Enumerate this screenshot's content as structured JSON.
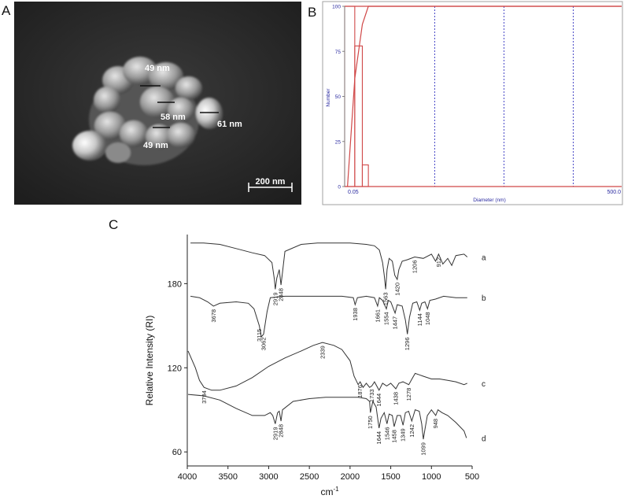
{
  "panels": {
    "a": "A",
    "b": "B",
    "c": "C"
  },
  "sem": {
    "labels": [
      "49 nm",
      "58 nm",
      "61 nm",
      "49 nm"
    ],
    "scale_bar": "200 nm"
  },
  "chart_data": [
    {
      "panel": "B",
      "type": "line",
      "title": "",
      "xlabel": "Diameter (nm)",
      "ylabel": "Number",
      "xlim": [
        0.05,
        500.0
      ],
      "ylim": [
        0,
        100
      ],
      "x_tick_labels": [
        "0.05",
        "500.0"
      ],
      "y_tick_labels": [
        "0",
        "25",
        "50",
        "75",
        "100"
      ],
      "bars": [
        {
          "x_from": 0.05,
          "x_to": 0.07,
          "value": 100
        },
        {
          "x_from": 0.07,
          "x_to": 0.09,
          "value": 78
        },
        {
          "x_from": 0.09,
          "x_to": 0.11,
          "value": 12
        }
      ],
      "cumulative": [
        {
          "x": 0.055,
          "y": 0
        },
        {
          "x": 0.07,
          "y": 60
        },
        {
          "x": 0.09,
          "y": 90
        },
        {
          "x": 0.11,
          "y": 100
        },
        {
          "x": 500.0,
          "y": 100
        }
      ],
      "grid": "vertical dashed"
    },
    {
      "panel": "C",
      "type": "line",
      "title": "",
      "xlabel": "cm",
      "xlabel_sup": "-1",
      "ylabel": "Relative Intensity (RI)",
      "xlim": [
        4000,
        500
      ],
      "x_ticks": [
        4000,
        3500,
        3000,
        2500,
        2000,
        1500,
        1000,
        500
      ],
      "ylim": [
        50,
        215
      ],
      "y_ticks": [
        60,
        120,
        180
      ],
      "series": [
        {
          "name": "a",
          "points": [
            [
              3960,
              209
            ],
            [
              3800,
              209
            ],
            [
              3600,
              208
            ],
            [
              3400,
              205
            ],
            [
              3200,
              202
            ],
            [
              3050,
              200
            ],
            [
              2960,
              195
            ],
            [
              2930,
              183
            ],
            [
              2919,
              176
            ],
            [
              2900,
              184
            ],
            [
              2870,
              190
            ],
            [
              2848,
              179
            ],
            [
              2830,
              188
            ],
            [
              2800,
              203
            ],
            [
              2600,
              208
            ],
            [
              2400,
              209
            ],
            [
              2200,
              209
            ],
            [
              2000,
              209
            ],
            [
              1800,
              208
            ],
            [
              1700,
              207
            ],
            [
              1640,
              204
            ],
            [
              1600,
              195
            ],
            [
              1580,
              186
            ],
            [
              1563,
              176
            ],
            [
              1545,
              190
            ],
            [
              1520,
              198
            ],
            [
              1480,
              196
            ],
            [
              1450,
              186
            ],
            [
              1420,
              183
            ],
            [
              1400,
              190
            ],
            [
              1360,
              196
            ],
            [
              1300,
              197
            ],
            [
              1206,
              199
            ],
            [
              1100,
              198
            ],
            [
              1000,
              201
            ],
            [
              950,
              196
            ],
            [
              912,
              201
            ],
            [
              860,
              194
            ],
            [
              800,
              198
            ],
            [
              750,
              193
            ],
            [
              700,
              200
            ],
            [
              600,
              201
            ],
            [
              560,
              199
            ]
          ],
          "labels": [
            {
              "wn": 2919,
              "text": "2919"
            },
            {
              "wn": 2848,
              "text": "2848"
            },
            {
              "wn": 1563,
              "text": "1563"
            },
            {
              "wn": 1420,
              "text": "1420"
            },
            {
              "wn": 1206,
              "text": "1206"
            },
            {
              "wn": 912,
              "text": "912"
            }
          ]
        },
        {
          "name": "b",
          "points": [
            [
              3960,
              171
            ],
            [
              3850,
              170
            ],
            [
              3750,
              167
            ],
            [
              3678,
              164
            ],
            [
              3600,
              166
            ],
            [
              3400,
              167
            ],
            [
              3250,
              166
            ],
            [
              3180,
              162
            ],
            [
              3115,
              150
            ],
            [
              3090,
              142
            ],
            [
              3062,
              144
            ],
            [
              3020,
              160
            ],
            [
              2980,
              170
            ],
            [
              2800,
              171
            ],
            [
              2400,
              171
            ],
            [
              2100,
              171
            ],
            [
              1960,
              170
            ],
            [
              1938,
              165
            ],
            [
              1910,
              170
            ],
            [
              1800,
              171
            ],
            [
              1700,
              170
            ],
            [
              1661,
              164
            ],
            [
              1640,
              170
            ],
            [
              1600,
              168
            ],
            [
              1554,
              162
            ],
            [
              1530,
              168
            ],
            [
              1500,
              167
            ],
            [
              1447,
              159
            ],
            [
              1420,
              165
            ],
            [
              1360,
              164
            ],
            [
              1320,
              154
            ],
            [
              1296,
              144
            ],
            [
              1270,
              156
            ],
            [
              1230,
              166
            ],
            [
              1180,
              167
            ],
            [
              1144,
              161
            ],
            [
              1120,
              166
            ],
            [
              1080,
              167
            ],
            [
              1048,
              162
            ],
            [
              1020,
              168
            ],
            [
              950,
              169
            ],
            [
              850,
              171
            ],
            [
              700,
              170
            ],
            [
              600,
              170
            ],
            [
              560,
              170
            ]
          ],
          "labels": [
            {
              "wn": 3678,
              "text": "3678"
            },
            {
              "wn": 3115,
              "text": "3115"
            },
            {
              "wn": 3062,
              "text": "3062"
            },
            {
              "wn": 1938,
              "text": "1938"
            },
            {
              "wn": 1661,
              "text": "1661"
            },
            {
              "wn": 1554,
              "text": "1554"
            },
            {
              "wn": 1447,
              "text": "1447"
            },
            {
              "wn": 1296,
              "text": "1296"
            },
            {
              "wn": 1144,
              "text": "1144"
            },
            {
              "wn": 1048,
              "text": "1048"
            }
          ]
        },
        {
          "name": "c",
          "points": [
            [
              3990,
              132
            ],
            [
              3900,
              120
            ],
            [
              3850,
              111
            ],
            [
              3794,
              106
            ],
            [
              3700,
              104
            ],
            [
              3600,
              104
            ],
            [
              3400,
              107
            ],
            [
              3200,
              113
            ],
            [
              3000,
              121
            ],
            [
              2800,
              127
            ],
            [
              2600,
              132
            ],
            [
              2450,
              136
            ],
            [
              2339,
              138
            ],
            [
              2200,
              136
            ],
            [
              2100,
              133
            ],
            [
              2000,
              125
            ],
            [
              1950,
              114
            ],
            [
              1900,
              108
            ],
            [
              1876,
              110
            ],
            [
              1840,
              106
            ],
            [
              1800,
              109
            ],
            [
              1760,
              106
            ],
            [
              1733,
              107
            ],
            [
              1700,
              110
            ],
            [
              1644,
              104
            ],
            [
              1600,
              109
            ],
            [
              1550,
              107
            ],
            [
              1500,
              109
            ],
            [
              1438,
              105
            ],
            [
              1400,
              109
            ],
            [
              1350,
              110
            ],
            [
              1278,
              108
            ],
            [
              1240,
              112
            ],
            [
              1200,
              116
            ],
            [
              1150,
              115
            ],
            [
              1100,
              114
            ],
            [
              1000,
              112
            ],
            [
              900,
              112
            ],
            [
              800,
              111
            ],
            [
              700,
              110
            ],
            [
              600,
              108
            ],
            [
              560,
              109
            ]
          ],
          "labels": [
            {
              "wn": 3794,
              "text": "3794"
            },
            {
              "wn": 2339,
              "text": "2339"
            },
            {
              "wn": 1876,
              "text": "1876"
            },
            {
              "wn": 1733,
              "text": "1733"
            },
            {
              "wn": 1644,
              "text": "1644"
            },
            {
              "wn": 1438,
              "text": "1438"
            },
            {
              "wn": 1278,
              "text": "1278"
            }
          ]
        },
        {
          "name": "d",
          "points": [
            [
              3990,
              101
            ],
            [
              3800,
              100
            ],
            [
              3600,
              97
            ],
            [
              3400,
              91
            ],
            [
              3200,
              86
            ],
            [
              3050,
              86
            ],
            [
              2980,
              88
            ],
            [
              2950,
              86
            ],
            [
              2919,
              80
            ],
            [
              2890,
              88
            ],
            [
              2870,
              89
            ],
            [
              2848,
              82
            ],
            [
              2830,
              90
            ],
            [
              2700,
              96
            ],
            [
              2500,
              98
            ],
            [
              2300,
              99
            ],
            [
              2100,
              99
            ],
            [
              1900,
              99
            ],
            [
              1800,
              98
            ],
            [
              1760,
              96
            ],
            [
              1750,
              88
            ],
            [
              1720,
              96
            ],
            [
              1680,
              92
            ],
            [
              1644,
              77
            ],
            [
              1620,
              84
            ],
            [
              1580,
              88
            ],
            [
              1546,
              80
            ],
            [
              1520,
              87
            ],
            [
              1480,
              86
            ],
            [
              1458,
              78
            ],
            [
              1420,
              86
            ],
            [
              1380,
              86
            ],
            [
              1349,
              79
            ],
            [
              1320,
              88
            ],
            [
              1280,
              89
            ],
            [
              1242,
              82
            ],
            [
              1200,
              90
            ],
            [
              1150,
              89
            ],
            [
              1120,
              80
            ],
            [
              1099,
              69
            ],
            [
              1080,
              76
            ],
            [
              1050,
              86
            ],
            [
              1000,
              90
            ],
            [
              948,
              86
            ],
            [
              920,
              90
            ],
            [
              870,
              88
            ],
            [
              800,
              86
            ],
            [
              700,
              81
            ],
            [
              600,
              75
            ],
            [
              570,
              70
            ]
          ],
          "labels": [
            {
              "wn": 2919,
              "text": "2919"
            },
            {
              "wn": 2848,
              "text": "2848"
            },
            {
              "wn": 1750,
              "text": "1750"
            },
            {
              "wn": 1644,
              "text": "1644"
            },
            {
              "wn": 1546,
              "text": "1546"
            },
            {
              "wn": 1458,
              "text": "1458"
            },
            {
              "wn": 1349,
              "text": "1349"
            },
            {
              "wn": 1242,
              "text": "1242"
            },
            {
              "wn": 1099,
              "text": "1099"
            },
            {
              "wn": 948,
              "text": "948"
            }
          ]
        }
      ]
    }
  ]
}
